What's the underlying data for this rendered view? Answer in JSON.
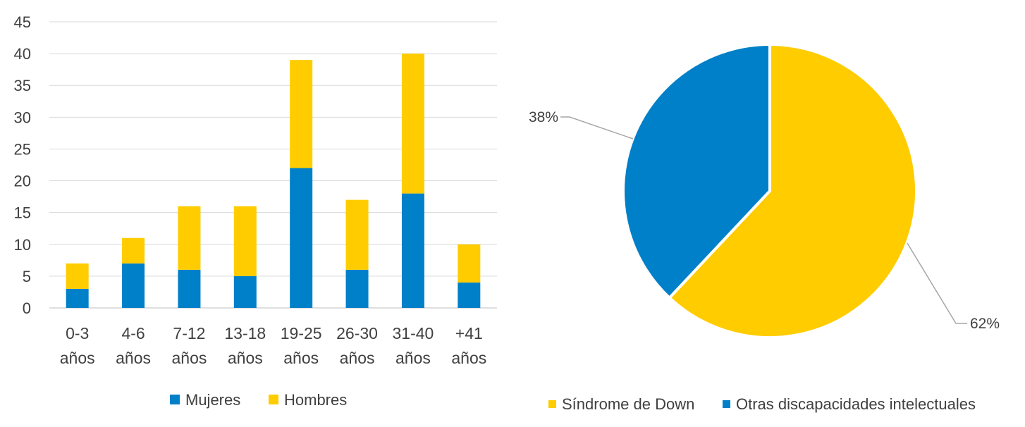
{
  "chart_data": [
    {
      "type": "bar",
      "stacked": true,
      "categories": [
        [
          "0-3",
          "años"
        ],
        [
          "4-6",
          "años"
        ],
        [
          "7-12",
          "años"
        ],
        [
          "13-18",
          "años"
        ],
        [
          "19-25",
          "años"
        ],
        [
          "26-30",
          "años"
        ],
        [
          "31-40",
          "años"
        ],
        [
          "+41",
          "años"
        ]
      ],
      "series": [
        {
          "name": "Mujeres",
          "color": "#0080C8",
          "values": [
            3,
            7,
            6,
            5,
            22,
            6,
            18,
            4
          ]
        },
        {
          "name": "Hombres",
          "color": "#FFCC00",
          "values": [
            4,
            4,
            10,
            11,
            17,
            11,
            22,
            6
          ]
        }
      ],
      "ylim": [
        0,
        45
      ],
      "yticks": [
        "0",
        "5",
        "10",
        "15",
        "20",
        "25",
        "30",
        "35",
        "40",
        "45"
      ],
      "grid": true,
      "legend_position": "bottom"
    },
    {
      "type": "pie",
      "slices": [
        {
          "name": "Síndrome de Down",
          "value": 62,
          "label": "62%",
          "color": "#FFCC00"
        },
        {
          "name": "Otras discapacidades intelectuales",
          "value": 38,
          "label": "38%",
          "color": "#0080C8"
        }
      ],
      "legend_position": "bottom"
    }
  ]
}
